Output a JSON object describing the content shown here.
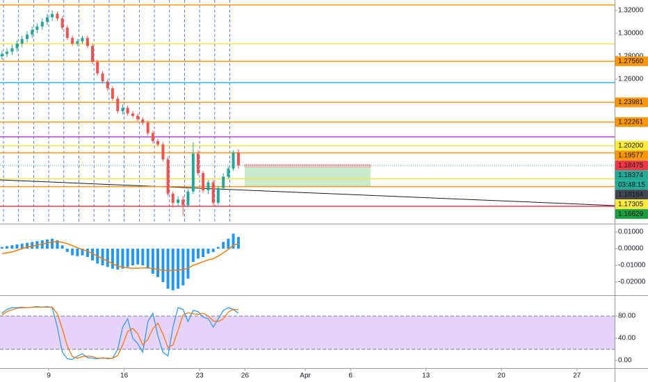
{
  "chart_data": [
    {
      "type": "candlestick",
      "x": [
        -3.1,
        -2.77,
        -2.43,
        -2.1,
        -1.77,
        -1.43,
        -1.1,
        -0.77,
        -0.43,
        -0.1,
        0.23,
        0.57,
        0.9,
        1.23,
        1.57,
        1.9,
        2.23,
        2.57,
        2.9,
        3.23,
        3.57,
        3.9,
        4.23,
        4.57,
        4.9,
        5.23,
        5.57,
        5.9,
        6.23,
        6.57,
        6.9,
        7.23,
        7.57,
        7.9,
        8.23,
        8.57,
        8.9,
        9.23,
        9.57,
        9.9,
        10.23,
        10.57,
        10.9,
        11.23,
        11.57,
        11.9,
        12.23,
        12.57
      ],
      "open": [
        1.28,
        1.282,
        1.284,
        1.287,
        1.291,
        1.295,
        1.299,
        1.303,
        1.306,
        1.31,
        1.314,
        1.317,
        1.313,
        1.305,
        1.296,
        1.291,
        1.293,
        1.296,
        1.289,
        1.275,
        1.265,
        1.258,
        1.252,
        1.243,
        1.232,
        1.235,
        1.23,
        1.228,
        1.225,
        1.222,
        1.213,
        1.206,
        1.203,
        1.19,
        1.16,
        1.152,
        1.155,
        1.15,
        1.162,
        1.195,
        1.178,
        1.163,
        1.17,
        1.152,
        1.165,
        1.175,
        1.182,
        1.196
      ],
      "high": [
        1.285,
        1.287,
        1.29,
        1.294,
        1.298,
        1.302,
        1.306,
        1.309,
        1.313,
        1.317,
        1.32,
        1.319,
        1.315,
        1.307,
        1.298,
        1.295,
        1.298,
        1.298,
        1.291,
        1.277,
        1.267,
        1.26,
        1.254,
        1.245,
        1.238,
        1.237,
        1.232,
        1.23,
        1.227,
        1.224,
        1.215,
        1.208,
        1.205,
        1.192,
        1.162,
        1.158,
        1.158,
        1.164,
        1.205,
        1.198,
        1.18,
        1.172,
        1.172,
        1.167,
        1.178,
        1.184,
        1.198,
        1.199
      ],
      "low": [
        1.277,
        1.279,
        1.281,
        1.284,
        1.288,
        1.292,
        1.296,
        1.3,
        1.303,
        1.307,
        1.311,
        1.311,
        1.303,
        1.294,
        1.289,
        1.289,
        1.291,
        1.287,
        1.273,
        1.263,
        1.256,
        1.25,
        1.241,
        1.23,
        1.229,
        1.228,
        1.226,
        1.223,
        1.22,
        1.211,
        1.204,
        1.201,
        1.188,
        1.158,
        1.148,
        1.149,
        1.141,
        1.148,
        1.16,
        1.176,
        1.161,
        1.16,
        1.15,
        1.15,
        1.163,
        1.173,
        1.18,
        1.182
      ],
      "close": [
        1.282,
        1.284,
        1.287,
        1.291,
        1.295,
        1.299,
        1.303,
        1.306,
        1.31,
        1.314,
        1.317,
        1.313,
        1.305,
        1.296,
        1.291,
        1.293,
        1.296,
        1.289,
        1.275,
        1.265,
        1.258,
        1.252,
        1.243,
        1.232,
        1.235,
        1.23,
        1.228,
        1.225,
        1.222,
        1.213,
        1.206,
        1.203,
        1.19,
        1.16,
        1.152,
        1.155,
        1.15,
        1.162,
        1.195,
        1.178,
        1.163,
        1.17,
        1.152,
        1.165,
        1.175,
        1.182,
        1.196,
        1.18475
      ],
      "up_color": "#26a69a",
      "down_color": "#ef5350",
      "xlim": [
        -3.23,
        37.5
      ],
      "xticks": [
        {
          "value": 0,
          "label": "9"
        },
        {
          "value": 5,
          "label": "16"
        },
        {
          "value": 10,
          "label": "23"
        },
        {
          "value": 13,
          "label": "26"
        },
        {
          "value": 17,
          "label": "Apr"
        },
        {
          "value": 20,
          "label": "6"
        },
        {
          "value": 25,
          "label": "13"
        },
        {
          "value": 30,
          "label": "20"
        },
        {
          "value": 35,
          "label": "27"
        }
      ],
      "ylim": [
        1.13394,
        1.32909
      ],
      "yticks": [
        {
          "value": 1.32,
          "label": "1.32000"
        },
        {
          "value": 1.3,
          "label": "1.30000"
        },
        {
          "value": 1.28,
          "label": "1.28000"
        },
        {
          "value": 1.26,
          "label": "1.26000"
        }
      ],
      "levels": [
        {
          "value": 1.3248,
          "color": "#ff9800"
        },
        {
          "value": 1.2909,
          "color": "#f5e642"
        },
        {
          "value": 1.2756,
          "color": "#ff9800"
        },
        {
          "value": 1.257,
          "color": "#29b6f6"
        },
        {
          "value": 1.23981,
          "color": "#ff9800"
        },
        {
          "value": 1.22261,
          "color": "#ff9800"
        },
        {
          "value": 1.2097,
          "color": "#b040d0"
        },
        {
          "value": 1.202,
          "color": "#f5e642"
        },
        {
          "value": 1.19577,
          "color": "#ff9800"
        },
        {
          "value": 1.17305,
          "color": "#f5e642"
        },
        {
          "value": 1.16629,
          "color": "#ff9800"
        },
        {
          "value": 1.1491,
          "color": "#f23645"
        }
      ],
      "price_labels": [
        {
          "value": 1.2756,
          "label": "1.27560",
          "color": "#ff9800",
          "text_color": "#131722"
        },
        {
          "value": 1.23981,
          "label": "1.23981",
          "color": "#ff9800",
          "text_color": "#131722"
        },
        {
          "value": 1.22261,
          "label": "1.22261",
          "color": "#ff9800",
          "text_color": "#131722"
        },
        {
          "value": 1.202,
          "label": "1.20200",
          "color": "#ffeb3b",
          "text_color": "#131722"
        },
        {
          "value": 1.19577,
          "label": "1.19577",
          "color": "#ff9800",
          "text_color": "#131722"
        },
        {
          "value": 1.18475,
          "label": "1.18475",
          "color": "#f23645",
          "text_color": "#ffffff"
        },
        {
          "value": 1.18374,
          "label": "1.18374",
          "color": "#22ab94",
          "text_color": "#ffffff"
        },
        {
          "label": "03:48:15",
          "color": "#22ab94",
          "text_color": "#ffffff"
        },
        {
          "value": 1.18184,
          "label": "1.18184",
          "color": "#434651",
          "text_color": "#ffffff"
        },
        {
          "value": 1.17305,
          "label": "1.17305",
          "color": "#ffeb3b",
          "text_color": "#131722"
        },
        {
          "value": 1.16629,
          "label": "1.16629",
          "color": "#1b9e3e",
          "text_color": "#ffffff"
        }
      ]
    },
    {
      "type": "macd",
      "values": [
        0.001,
        0.0015,
        0.002,
        0.0025,
        0.003,
        0.0035,
        0.004,
        0.0045,
        0.005,
        0.0055,
        0.006,
        0.005,
        0.002,
        -0.002,
        -0.004,
        -0.0045,
        -0.004,
        -0.005,
        -0.007,
        -0.009,
        -0.01,
        -0.011,
        -0.012,
        -0.0125,
        -0.012,
        -0.011,
        -0.01,
        -0.0095,
        -0.01,
        -0.012,
        -0.015,
        -0.017,
        -0.02,
        -0.024,
        -0.025,
        -0.024,
        -0.022,
        -0.018,
        -0.008,
        -0.006,
        -0.005,
        -0.003,
        -0.002,
        0.001,
        0.004,
        0.006,
        0.009,
        0.007
      ],
      "color": "#2196f3",
      "signal": [
        -0.003,
        -0.0025,
        -0.002,
        -0.001,
        0,
        0.001,
        0.0015,
        0.002,
        0.0028,
        0.0034,
        0.004,
        0.0042,
        0.0038,
        0.003,
        0.0018,
        0.0005,
        -0.0005,
        -0.0015,
        -0.003,
        -0.0045,
        -0.006,
        -0.0075,
        -0.009,
        -0.0105,
        -0.011,
        -0.0115,
        -0.0118,
        -0.0118,
        -0.0115,
        -0.0115,
        -0.012,
        -0.0125,
        -0.013,
        -0.0132,
        -0.013,
        -0.0128,
        -0.0125,
        -0.0118,
        -0.01,
        -0.009,
        -0.0078,
        -0.0068,
        -0.006,
        -0.0045,
        -0.0025,
        -0.0005,
        0.002,
        0.003
      ],
      "signal_color": "#f57c00",
      "ylim": [
        -0.02792,
        0.01458
      ],
      "yticks": [
        {
          "value": 0.01,
          "label": "0.01000"
        },
        {
          "value": 0,
          "label": "0.00000"
        },
        {
          "value": -0.01,
          "label": "-0.01000"
        },
        {
          "value": -0.02,
          "label": "-0.02000"
        }
      ]
    },
    {
      "type": "stochastic",
      "series": [
        {
          "color": "#2196f3",
          "values": [
            85,
            92,
            95,
            95,
            96,
            95,
            96,
            97,
            96,
            97,
            95,
            60,
            15,
            3,
            2,
            8,
            12,
            5,
            4,
            3,
            5,
            3,
            4,
            20,
            60,
            75,
            40,
            30,
            15,
            70,
            85,
            45,
            15,
            8,
            60,
            95,
            92,
            70,
            90,
            88,
            78,
            75,
            60,
            75,
            90,
            95,
            92,
            85
          ]
        },
        {
          "color": "#ff6d00",
          "values": [
            82,
            88,
            91,
            94,
            95,
            95,
            96,
            96,
            96,
            96,
            96,
            84,
            57,
            26,
            7,
            4,
            7,
            8,
            7,
            4,
            4,
            4,
            4,
            9,
            28,
            52,
            58,
            48,
            28,
            38,
            57,
            67,
            48,
            23,
            28,
            54,
            82,
            86,
            84,
            83,
            85,
            80,
            71,
            70,
            75,
            87,
            92,
            91
          ]
        }
      ],
      "band": [
        20,
        80
      ],
      "band_color": "#e1c8f7",
      "ylim": [
        -13.75,
        116.25
      ],
      "yticks": [
        {
          "value": 80,
          "label": "80.00"
        },
        {
          "value": 40,
          "label": "40.00"
        },
        {
          "value": 0,
          "label": "0.00"
        }
      ]
    }
  ]
}
